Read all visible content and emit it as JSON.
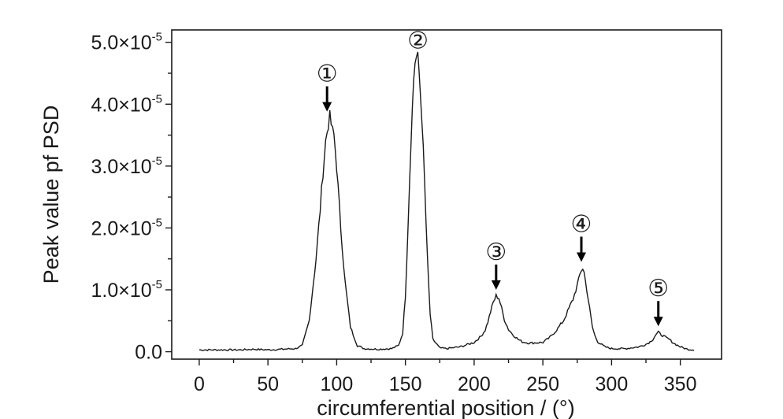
{
  "chart_data": {
    "type": "line",
    "title": "",
    "xlabel": "circumferential position / (°)",
    "ylabel": "Peak value pf PSD",
    "xlim": [
      -20,
      380
    ],
    "ylim": [
      -1.2e-06,
      5.2e-05
    ],
    "x_ticks": [
      0,
      50,
      100,
      150,
      200,
      250,
      300,
      350
    ],
    "x_tick_labels": [
      "0",
      "50",
      "100",
      "150",
      "200",
      "250",
      "300",
      "350"
    ],
    "y_ticks": [
      0,
      1e-05,
      2e-05,
      3e-05,
      4e-05,
      5e-05
    ],
    "y_tick_labels": [
      {
        "mantissa": "0.0",
        "exponent": ""
      },
      {
        "mantissa": "1.0×10",
        "exponent": "-5"
      },
      {
        "mantissa": "2.0×10",
        "exponent": "-5"
      },
      {
        "mantissa": "3.0×10",
        "exponent": "-5"
      },
      {
        "mantissa": "4.0×10",
        "exponent": "-5"
      },
      {
        "mantissa": "5.0×10",
        "exponent": "-5"
      }
    ],
    "grid": false,
    "legend": "none",
    "series": [
      {
        "x": [
          0,
          10,
          20,
          30,
          40,
          50,
          60,
          70,
          75,
          80,
          85,
          88,
          90,
          92,
          94,
          95,
          96,
          97,
          98,
          100,
          103,
          106,
          110,
          115,
          120,
          130,
          140,
          145,
          148,
          150,
          152,
          154,
          156,
          157,
          158,
          159,
          160,
          162,
          164,
          166,
          168,
          170,
          175,
          180,
          190,
          200,
          205,
          208,
          210,
          212,
          214,
          216,
          218,
          220,
          222,
          225,
          228,
          232,
          235,
          240,
          250,
          255,
          260,
          265,
          268,
          270,
          272,
          274,
          276,
          277,
          278,
          279,
          280,
          282,
          284,
          286,
          288,
          290,
          295,
          300,
          310,
          320,
          325,
          328,
          330,
          332,
          334,
          336,
          338,
          340,
          342,
          345,
          350,
          355,
          360
        ],
        "y": [
          3e-07,
          3e-07,
          3e-07,
          3e-07,
          4e-07,
          3e-07,
          4e-07,
          5e-07,
          1e-06,
          5e-06,
          1.5e-05,
          2.3e-05,
          2.9e-05,
          3.4e-05,
          3.7e-05,
          3.78e-05,
          3.68e-05,
          3.55e-05,
          3.5e-05,
          3e-05,
          2e-05,
          1.15e-05,
          4e-06,
          1e-06,
          5e-07,
          4e-07,
          5e-07,
          1e-06,
          3e-06,
          9e-06,
          2.1e-05,
          3.4e-05,
          4.4e-05,
          4.7e-05,
          4.75e-05,
          4.72e-05,
          4.5e-05,
          3.8e-05,
          2.7e-05,
          1.5e-05,
          6e-06,
          2e-06,
          6e-07,
          5e-07,
          8e-07,
          1.5e-06,
          2.5e-06,
          3.5e-06,
          4.8e-06,
          6.5e-06,
          8e-06,
          9e-06,
          8.7e-06,
          7e-06,
          5.2e-06,
          3.6e-06,
          2.8e-06,
          2e-06,
          1.6e-06,
          1.4e-06,
          1.5e-06,
          2.3e-06,
          3.5e-06,
          5e-06,
          6.5e-06,
          7.5e-06,
          8.5e-06,
          1e-05,
          1.15e-05,
          1.25e-05,
          1.32e-05,
          1.35e-05,
          1.28e-05,
          1e-05,
          7e-06,
          4e-06,
          2.5e-06,
          1.6e-06,
          8e-07,
          5e-07,
          5e-07,
          8e-07,
          1.2e-06,
          1.6e-06,
          2e-06,
          2.7e-06,
          3.1e-06,
          2.8e-06,
          2.5e-06,
          2.2e-06,
          2e-06,
          1.4e-06,
          8e-07,
          4e-07,
          3e-07
        ]
      }
    ],
    "peak_markers": [
      {
        "label": "①",
        "x": 93,
        "y": 3.78e-05
      },
      {
        "label": "②",
        "x": 158,
        "y": 4.75e-05
      },
      {
        "label": "③",
        "x": 216,
        "y": 9e-06
      },
      {
        "label": "④",
        "x": 278,
        "y": 1.35e-05
      },
      {
        "label": "⑤",
        "x": 334,
        "y": 3.1e-06
      }
    ]
  }
}
